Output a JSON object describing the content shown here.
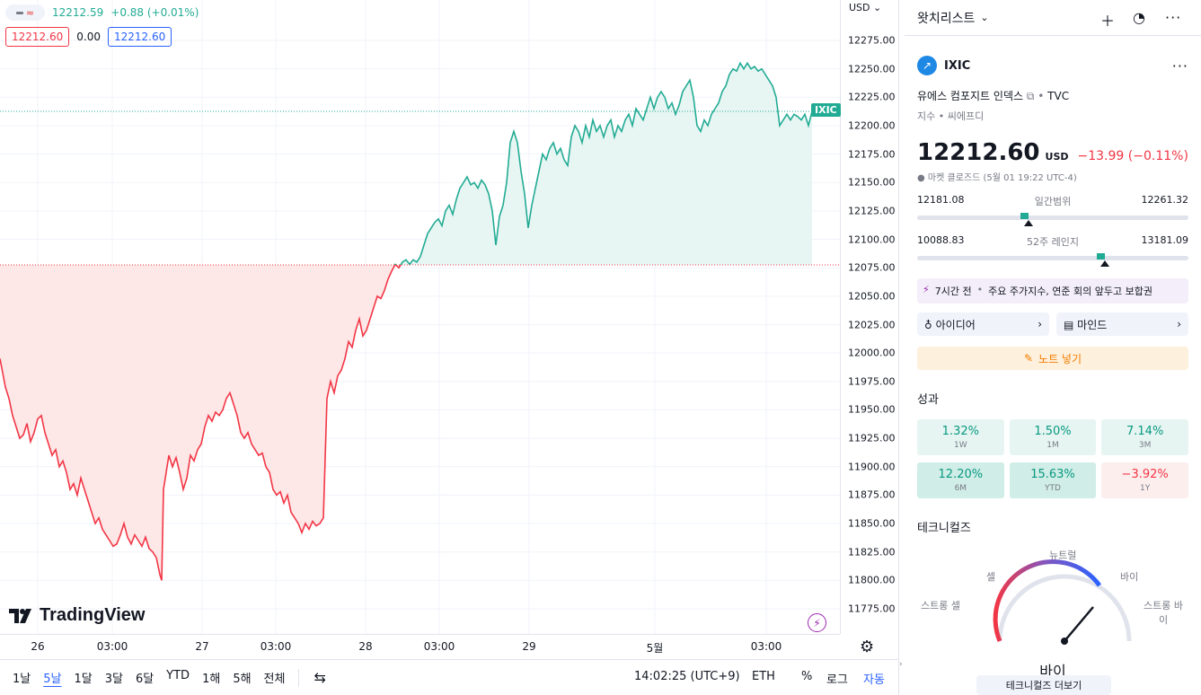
{
  "legend": {
    "toggle_glyph": "≈",
    "last_price": "12212.59",
    "change": "+0.88 (+0.01%)",
    "bid": "12212.60",
    "spread": "0.00",
    "ask": "12212.60"
  },
  "price_scale": {
    "currency": "USD",
    "last_label": "IXIC"
  },
  "logo_text": "TradingView",
  "time_axis": [
    "26",
    "03:00",
    "27",
    "03:00",
    "28",
    "03:00",
    "29",
    "5월",
    "03:00"
  ],
  "toolbar": {
    "ranges": [
      "1날",
      "5날",
      "1달",
      "3달",
      "6달",
      "YTD",
      "1해",
      "5해",
      "전체"
    ],
    "active_range": "5날",
    "clock": "14:02:25 (UTC+9)",
    "session": "ETH",
    "percent": "%",
    "log": "로그",
    "auto": "자동"
  },
  "chart_data": {
    "type": "area",
    "symbol": "IXIC",
    "baseline": 12077.5,
    "ylim": [
      11765,
      12290
    ],
    "yticks": [
      12275,
      12250,
      12225,
      12200,
      12175,
      12150,
      12125,
      12100,
      12075,
      12050,
      12025,
      12000,
      11975,
      11950,
      11925,
      11900,
      11875,
      11850,
      11825,
      11800,
      11775
    ],
    "xrange": [
      0,
      910
    ],
    "colors": {
      "above": "#22ab94",
      "below": "#f23645",
      "above_fill": "#e8f6f3",
      "below_fill": "#fde7e7"
    },
    "points": [
      [
        0,
        11995
      ],
      [
        6,
        11970
      ],
      [
        10,
        11960
      ],
      [
        14,
        11945
      ],
      [
        18,
        11935
      ],
      [
        22,
        11925
      ],
      [
        26,
        11928
      ],
      [
        30,
        11938
      ],
      [
        34,
        11922
      ],
      [
        38,
        11930
      ],
      [
        42,
        11942
      ],
      [
        46,
        11945
      ],
      [
        50,
        11930
      ],
      [
        54,
        11920
      ],
      [
        58,
        11910
      ],
      [
        62,
        11915
      ],
      [
        66,
        11900
      ],
      [
        70,
        11905
      ],
      [
        74,
        11895
      ],
      [
        78,
        11880
      ],
      [
        82,
        11885
      ],
      [
        86,
        11875
      ],
      [
        90,
        11890
      ],
      [
        94,
        11880
      ],
      [
        98,
        11870
      ],
      [
        102,
        11860
      ],
      [
        106,
        11850
      ],
      [
        110,
        11855
      ],
      [
        114,
        11845
      ],
      [
        118,
        11840
      ],
      [
        122,
        11835
      ],
      [
        126,
        11830
      ],
      [
        130,
        11832
      ],
      [
        134,
        11840
      ],
      [
        138,
        11850
      ],
      [
        142,
        11838
      ],
      [
        146,
        11832
      ],
      [
        150,
        11840
      ],
      [
        154,
        11835
      ],
      [
        158,
        11830
      ],
      [
        162,
        11838
      ],
      [
        166,
        11828
      ],
      [
        170,
        11825
      ],
      [
        174,
        11820
      ],
      [
        178,
        11805
      ],
      [
        180,
        11800
      ],
      [
        182,
        11880
      ],
      [
        185,
        11895
      ],
      [
        188,
        11910
      ],
      [
        192,
        11900
      ],
      [
        196,
        11908
      ],
      [
        200,
        11895
      ],
      [
        204,
        11880
      ],
      [
        208,
        11890
      ],
      [
        212,
        11910
      ],
      [
        216,
        11905
      ],
      [
        220,
        11915
      ],
      [
        224,
        11920
      ],
      [
        228,
        11935
      ],
      [
        232,
        11945
      ],
      [
        236,
        11940
      ],
      [
        240,
        11948
      ],
      [
        244,
        11945
      ],
      [
        248,
        11950
      ],
      [
        252,
        11960
      ],
      [
        256,
        11965
      ],
      [
        260,
        11955
      ],
      [
        264,
        11945
      ],
      [
        268,
        11930
      ],
      [
        272,
        11925
      ],
      [
        276,
        11930
      ],
      [
        280,
        11920
      ],
      [
        284,
        11915
      ],
      [
        288,
        11910
      ],
      [
        292,
        11912
      ],
      [
        296,
        11900
      ],
      [
        300,
        11895
      ],
      [
        304,
        11880
      ],
      [
        308,
        11875
      ],
      [
        312,
        11878
      ],
      [
        316,
        11868
      ],
      [
        320,
        11875
      ],
      [
        324,
        11860
      ],
      [
        328,
        11855
      ],
      [
        332,
        11850
      ],
      [
        336,
        11842
      ],
      [
        340,
        11850
      ],
      [
        344,
        11845
      ],
      [
        348,
        11852
      ],
      [
        352,
        11848
      ],
      [
        356,
        11850
      ],
      [
        360,
        11855
      ],
      [
        364,
        11960
      ],
      [
        368,
        11975
      ],
      [
        372,
        11965
      ],
      [
        376,
        11980
      ],
      [
        380,
        11985
      ],
      [
        384,
        11995
      ],
      [
        388,
        12010
      ],
      [
        392,
        12005
      ],
      [
        396,
        12020
      ],
      [
        400,
        12030
      ],
      [
        404,
        12015
      ],
      [
        408,
        12020
      ],
      [
        412,
        12030
      ],
      [
        416,
        12040
      ],
      [
        420,
        12050
      ],
      [
        424,
        12048
      ],
      [
        428,
        12055
      ],
      [
        432,
        12065
      ],
      [
        436,
        12072
      ],
      [
        440,
        12078
      ],
      [
        444,
        12075
      ],
      [
        448,
        12080
      ],
      [
        452,
        12082
      ],
      [
        456,
        12078
      ],
      [
        460,
        12082
      ],
      [
        464,
        12080
      ],
      [
        468,
        12085
      ],
      [
        472,
        12095
      ],
      [
        476,
        12105
      ],
      [
        480,
        12110
      ],
      [
        484,
        12115
      ],
      [
        488,
        12118
      ],
      [
        492,
        12112
      ],
      [
        496,
        12125
      ],
      [
        500,
        12130
      ],
      [
        504,
        12122
      ],
      [
        508,
        12135
      ],
      [
        512,
        12145
      ],
      [
        516,
        12150
      ],
      [
        520,
        12155
      ],
      [
        524,
        12148
      ],
      [
        528,
        12150
      ],
      [
        532,
        12145
      ],
      [
        536,
        12152
      ],
      [
        540,
        12148
      ],
      [
        544,
        12140
      ],
      [
        548,
        12125
      ],
      [
        552,
        12095
      ],
      [
        556,
        12120
      ],
      [
        560,
        12130
      ],
      [
        564,
        12150
      ],
      [
        568,
        12185
      ],
      [
        572,
        12195
      ],
      [
        576,
        12185
      ],
      [
        580,
        12160
      ],
      [
        584,
        12140
      ],
      [
        588,
        12110
      ],
      [
        592,
        12130
      ],
      [
        596,
        12145
      ],
      [
        600,
        12160
      ],
      [
        604,
        12175
      ],
      [
        608,
        12170
      ],
      [
        612,
        12180
      ],
      [
        616,
        12185
      ],
      [
        620,
        12175
      ],
      [
        624,
        12180
      ],
      [
        628,
        12170
      ],
      [
        632,
        12165
      ],
      [
        636,
        12190
      ],
      [
        640,
        12200
      ],
      [
        644,
        12195
      ],
      [
        648,
        12185
      ],
      [
        652,
        12200
      ],
      [
        656,
        12190
      ],
      [
        660,
        12205
      ],
      [
        664,
        12195
      ],
      [
        668,
        12200
      ],
      [
        672,
        12190
      ],
      [
        676,
        12200
      ],
      [
        680,
        12205
      ],
      [
        684,
        12190
      ],
      [
        688,
        12200
      ],
      [
        692,
        12195
      ],
      [
        696,
        12205
      ],
      [
        700,
        12210
      ],
      [
        704,
        12200
      ],
      [
        708,
        12215
      ],
      [
        712,
        12210
      ],
      [
        716,
        12205
      ],
      [
        720,
        12215
      ],
      [
        724,
        12225
      ],
      [
        728,
        12215
      ],
      [
        732,
        12225
      ],
      [
        736,
        12230
      ],
      [
        740,
        12225
      ],
      [
        744,
        12215
      ],
      [
        748,
        12220
      ],
      [
        752,
        12210
      ],
      [
        756,
        12218
      ],
      [
        760,
        12230
      ],
      [
        764,
        12235
      ],
      [
        768,
        12240
      ],
      [
        772,
        12225
      ],
      [
        776,
        12200
      ],
      [
        780,
        12195
      ],
      [
        784,
        12205
      ],
      [
        788,
        12200
      ],
      [
        792,
        12210
      ],
      [
        796,
        12215
      ],
      [
        800,
        12220
      ],
      [
        804,
        12230
      ],
      [
        808,
        12235
      ],
      [
        812,
        12245
      ],
      [
        816,
        12250
      ],
      [
        820,
        12248
      ],
      [
        824,
        12255
      ],
      [
        828,
        12250
      ],
      [
        832,
        12255
      ],
      [
        836,
        12250
      ],
      [
        840,
        12252
      ],
      [
        844,
        12248
      ],
      [
        848,
        12250
      ],
      [
        852,
        12245
      ],
      [
        856,
        12240
      ],
      [
        860,
        12235
      ],
      [
        864,
        12225
      ],
      [
        868,
        12200
      ],
      [
        872,
        12205
      ],
      [
        876,
        12210
      ],
      [
        880,
        12205
      ],
      [
        884,
        12210
      ],
      [
        888,
        12208
      ],
      [
        892,
        12205
      ],
      [
        896,
        12210
      ],
      [
        900,
        12200
      ],
      [
        904,
        12212.6
      ]
    ]
  },
  "sidebar": {
    "title": "왓치리스트",
    "symbol": {
      "logo_glyph": "↗",
      "ticker": "IXIC",
      "name": "유에스 컴포지트 인덱스",
      "source": "TVC",
      "type": "지수",
      "provider": "씨에프디",
      "price": "12212.60",
      "currency": "USD",
      "change": "−13.99 (−0.11%)",
      "status": "마켓 클로즈드",
      "status_time": "(5월 01 19:22 UTC-4)"
    },
    "day_range": {
      "low": "12181.08",
      "label": "일간범위",
      "high": "12261.32",
      "marker_frac": 0.39,
      "arrow_frac": 0.39
    },
    "week52_range": {
      "low": "10088.83",
      "label": "52주 레인지",
      "high": "13181.09",
      "marker_frac": 0.67,
      "arrow_frac": 0.67
    },
    "news": {
      "time": "7시간 전",
      "headline": "주요 주가지수, 연준 회의 앞두고 보합권"
    },
    "ideas_label": "아이디어",
    "minds_label": "마인드",
    "note_label": "노트 넣기",
    "performance_title": "성과",
    "performance": [
      {
        "value": "1.32%",
        "period": "1W",
        "tone": "pos"
      },
      {
        "value": "1.50%",
        "period": "1M",
        "tone": "pos"
      },
      {
        "value": "7.14%",
        "period": "3M",
        "tone": "pos"
      },
      {
        "value": "12.20%",
        "period": "6M",
        "tone": "pos2"
      },
      {
        "value": "15.63%",
        "period": "YTD",
        "tone": "pos2"
      },
      {
        "value": "−3.92%",
        "period": "1Y",
        "tone": "neg"
      }
    ],
    "technicals_title": "테크니컬즈",
    "gauge": {
      "neutral": "뉴트럴",
      "sell": "셀",
      "buy": "바이",
      "strong_sell": "스트롱 셀",
      "strong_buy": "스트롱 바이",
      "result": "바이"
    },
    "more_technicals": "테크니컬즈 더보기"
  }
}
